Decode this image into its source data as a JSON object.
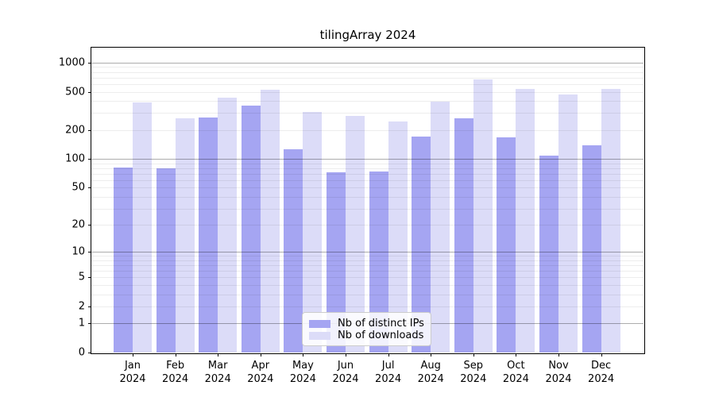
{
  "title": "tilingArray 2024",
  "chart_data": {
    "type": "bar",
    "title": "tilingArray 2024",
    "scale": "log1p",
    "grid": true,
    "legend_position": "lower-center-inside",
    "xlabel": "",
    "ylabel": "",
    "categories": [
      "Jan 2024",
      "Feb 2024",
      "Mar 2024",
      "Apr 2024",
      "May 2024",
      "Jun 2024",
      "Jul 2024",
      "Aug 2024",
      "Sep 2024",
      "Oct 2024",
      "Nov 2024",
      "Dec 2024"
    ],
    "series": [
      {
        "name": "Nb of distinct IPs",
        "color": "#a5a5f2",
        "values": [
          81,
          79,
          272,
          360,
          127,
          72,
          74,
          170,
          266,
          168,
          108,
          140
        ]
      },
      {
        "name": "Nb of downloads",
        "color": "#dcdcf8",
        "values": [
          385,
          263,
          435,
          520,
          308,
          280,
          244,
          392,
          670,
          530,
          465,
          530
        ]
      }
    ],
    "yticks": [
      0,
      1,
      2,
      5,
      10,
      20,
      50,
      100,
      200,
      500,
      1000
    ],
    "yticks_minor": [
      2,
      3,
      4,
      5,
      6,
      7,
      8,
      9,
      20,
      30,
      40,
      50,
      60,
      70,
      80,
      90,
      200,
      300,
      400,
      500,
      600,
      700,
      800,
      900
    ],
    "major_grid_values": [
      1,
      10,
      100,
      1000
    ],
    "ylim": [
      0,
      1430
    ]
  },
  "colors": {
    "major_grid": "rgba(0,0,0,0.32)",
    "minor_grid": "rgba(0,0,0,0.07)",
    "frame": "#000000"
  }
}
